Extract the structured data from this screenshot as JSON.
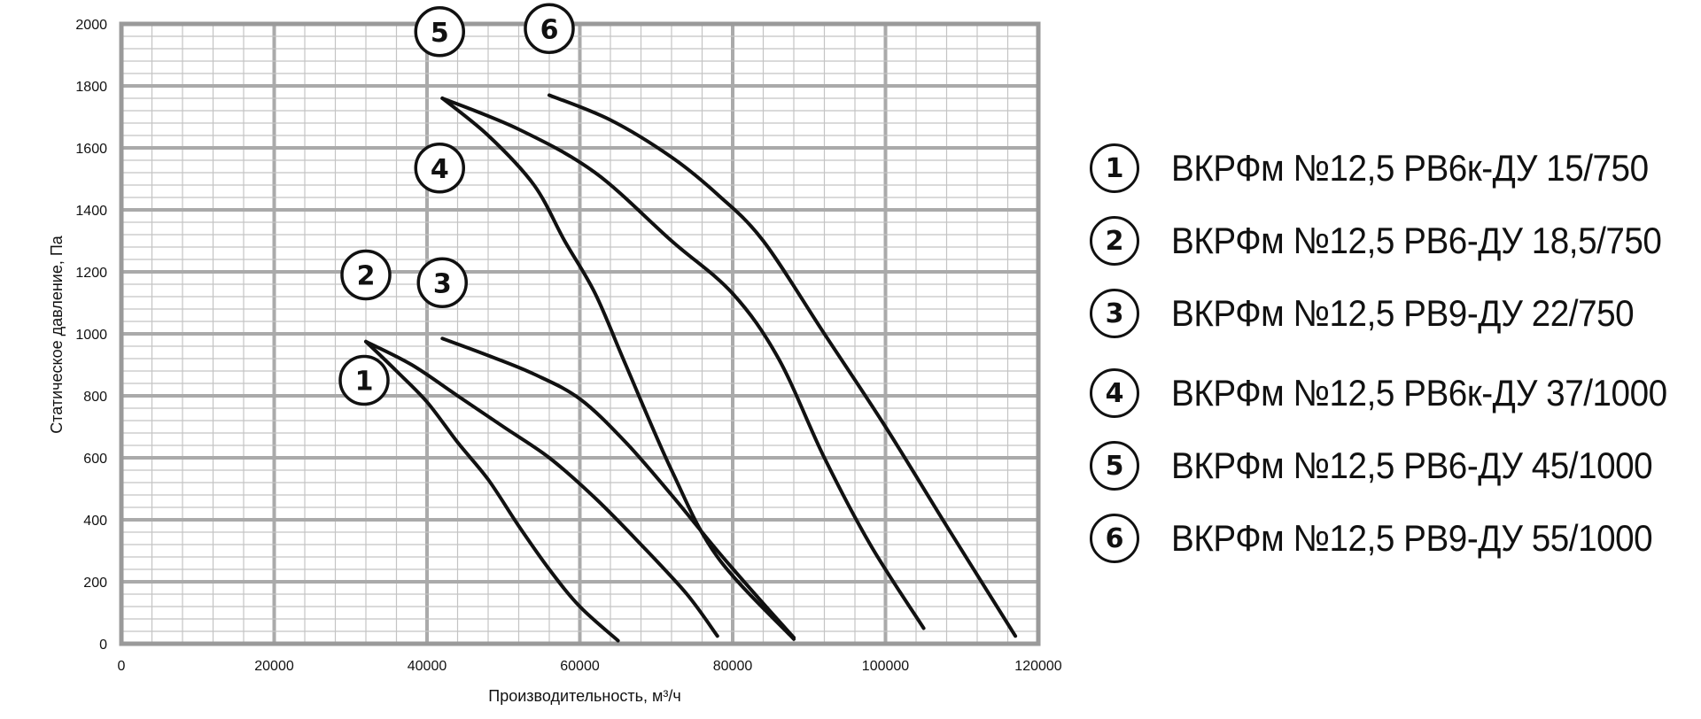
{
  "chart_data": {
    "type": "line",
    "title": "",
    "xlabel": "Производительность, м³/ч",
    "ylabel": "Статическое давление, Па",
    "xlim": [
      0,
      120000
    ],
    "ylim": [
      0,
      2000
    ],
    "x_ticks": [
      0,
      20000,
      40000,
      60000,
      80000,
      100000,
      120000
    ],
    "y_ticks": [
      0,
      200,
      400,
      600,
      800,
      1000,
      1200,
      1400,
      1600,
      1800,
      2000
    ],
    "grid": true,
    "legend_position": "right",
    "series": [
      {
        "name": "ВКРФм №12,5 РВ6к-ДУ 15/750",
        "marker": "1",
        "points": [
          [
            32000,
            975
          ],
          [
            36000,
            880
          ],
          [
            40000,
            780
          ],
          [
            44000,
            650
          ],
          [
            48000,
            530
          ],
          [
            52000,
            380
          ],
          [
            56000,
            240
          ],
          [
            60000,
            120
          ],
          [
            65000,
            10
          ]
        ]
      },
      {
        "name": "ВКРФм №12,5 РВ6-ДУ 18,5/750",
        "marker": "2",
        "points": [
          [
            32000,
            975
          ],
          [
            38000,
            900
          ],
          [
            44000,
            800
          ],
          [
            50000,
            700
          ],
          [
            56000,
            600
          ],
          [
            62000,
            470
          ],
          [
            68000,
            320
          ],
          [
            74000,
            160
          ],
          [
            78000,
            25
          ]
        ]
      },
      {
        "name": "ВКРФм №12,5 РВ9-ДУ 22/750",
        "marker": "3",
        "points": [
          [
            42000,
            985
          ],
          [
            48000,
            930
          ],
          [
            54000,
            870
          ],
          [
            60000,
            790
          ],
          [
            66000,
            650
          ],
          [
            72000,
            480
          ],
          [
            78000,
            300
          ],
          [
            84000,
            130
          ],
          [
            88000,
            20
          ]
        ]
      },
      {
        "name": "ВКРФм №12,5 РВ6к-ДУ 37/1000",
        "marker": "4",
        "points": [
          [
            42000,
            1760
          ],
          [
            48000,
            1640
          ],
          [
            54000,
            1480
          ],
          [
            58000,
            1300
          ],
          [
            62000,
            1130
          ],
          [
            66000,
            900
          ],
          [
            72000,
            560
          ],
          [
            78000,
            280
          ],
          [
            88000,
            15
          ]
        ]
      },
      {
        "name": "ВКРФм №12,5 РВ6-ДУ 45/1000",
        "marker": "5",
        "points": [
          [
            42000,
            1760
          ],
          [
            52000,
            1660
          ],
          [
            62000,
            1520
          ],
          [
            72000,
            1300
          ],
          [
            80000,
            1130
          ],
          [
            86000,
            920
          ],
          [
            92000,
            600
          ],
          [
            98000,
            320
          ],
          [
            105000,
            50
          ]
        ]
      },
      {
        "name": "ВКРФм №12,5 РВ9-ДУ 55/1000",
        "marker": "6",
        "points": [
          [
            56000,
            1770
          ],
          [
            64000,
            1690
          ],
          [
            72000,
            1570
          ],
          [
            78000,
            1450
          ],
          [
            84000,
            1300
          ],
          [
            92000,
            1000
          ],
          [
            100000,
            700
          ],
          [
            108000,
            380
          ],
          [
            117000,
            25
          ]
        ]
      }
    ]
  },
  "marker_colors": {
    "line": "#111111",
    "grid_major": "#aaaaaa",
    "grid_minor": "#c4c4c4",
    "frame": "#9a9a9a"
  }
}
